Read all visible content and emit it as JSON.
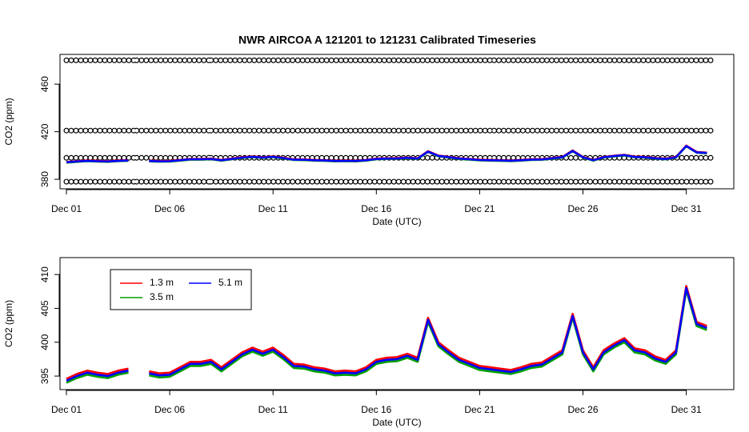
{
  "chart_data": [
    {
      "type": "line",
      "title": "NWR   AIRCOA  A   121201  to  121231   Calibrated Timeseries",
      "xlabel": "Date (UTC)",
      "ylabel": "CO2 (ppm)",
      "xlim": [
        0.69,
        33.3
      ],
      "ylim": [
        372,
        485
      ],
      "xticks": [
        {
          "value": 1,
          "label": "Dec 01"
        },
        {
          "value": 6,
          "label": "Dec 06"
        },
        {
          "value": 11,
          "label": "Dec 11"
        },
        {
          "value": 16,
          "label": "Dec 16"
        },
        {
          "value": 21,
          "label": "Dec 21"
        },
        {
          "value": 26,
          "label": "Dec 26"
        },
        {
          "value": 31,
          "label": "Dec 31"
        }
      ],
      "yticks": [
        380,
        420,
        460
      ],
      "x": [
        1,
        1.5,
        2,
        2.5,
        3,
        3.5,
        4,
        4.5,
        5,
        5.5,
        6,
        6.5,
        7,
        7.5,
        8,
        8.5,
        9,
        9.5,
        10,
        10.5,
        11,
        11.5,
        12,
        12.5,
        13,
        13.5,
        14,
        14.5,
        15,
        15.5,
        16,
        16.5,
        17,
        17.5,
        18,
        18.5,
        19,
        19.5,
        20,
        20.5,
        21,
        21.5,
        22,
        22.5,
        23,
        23.5,
        24,
        24.5,
        25,
        25.5,
        26,
        26.5,
        27,
        27.5,
        28,
        28.5,
        29,
        29.5,
        30,
        30.5,
        31,
        31.5,
        32
      ],
      "series": [
        {
          "color": "#000000",
          "marker": "circle",
          "x": [
            1.0,
            4.3,
            4.35,
            4.4,
            7.9,
            7.95,
            8.0,
            12.1,
            12.15,
            12.2,
            21.6,
            21.65,
            21.7,
            26.5,
            26.55,
            26.6,
            32.2
          ],
          "values": [
            480,
            480,
            null,
            480,
            480,
            null,
            480,
            480,
            null,
            480,
            480,
            null,
            480,
            480,
            null,
            480,
            480
          ]
        },
        {
          "color": "#000000",
          "marker": "circle",
          "x": [
            1.0,
            4.3,
            4.35,
            4.4,
            7.9,
            7.95,
            8.0,
            12.1,
            12.15,
            12.2,
            21.6,
            21.65,
            21.7,
            26.5,
            26.55,
            26.6,
            32.2
          ],
          "values": [
            421,
            421,
            null,
            421,
            421,
            null,
            421,
            421,
            null,
            421,
            421,
            null,
            421,
            421,
            null,
            421,
            421
          ]
        },
        {
          "color": "#000000",
          "marker": "circle",
          "x": [
            1.0,
            4.3,
            4.35,
            4.4,
            7.9,
            7.95,
            8.0,
            12.1,
            12.15,
            12.2,
            21.6,
            21.65,
            21.7,
            26.5,
            26.55,
            26.6,
            32.2
          ],
          "values": [
            398,
            398,
            null,
            398,
            398,
            null,
            398,
            398,
            null,
            398,
            398,
            null,
            398,
            398,
            null,
            398,
            398
          ]
        },
        {
          "color": "#000000",
          "marker": "circle",
          "x": [
            1.0,
            4.3,
            4.35,
            4.4,
            7.9,
            7.95,
            8.0,
            12.1,
            12.15,
            12.2,
            21.6,
            21.65,
            21.7,
            26.5,
            26.55,
            26.6,
            32.2
          ],
          "values": [
            378,
            378,
            null,
            378,
            378,
            null,
            378,
            378,
            null,
            378,
            378,
            null,
            378,
            378,
            null,
            378,
            378
          ]
        },
        {
          "color": "#00a000",
          "values": [
            394,
            394.7,
            395.2,
            394.9,
            394.7,
            395.2,
            395.5,
            null,
            395.1,
            394.8,
            394.9,
            395.7,
            396.5,
            396.5,
            396.8,
            395.7,
            396.8,
            397.9,
            398.6,
            398,
            398.6,
            397.5,
            396.2,
            396.1,
            395.7,
            395.5,
            395.1,
            395.2,
            395.1,
            395.7,
            396.8,
            397.1,
            397.2,
            397.7,
            397.1,
            403,
            399.4,
            398.2,
            397.1,
            396.5,
            395.9,
            395.7,
            395.5,
            395.3,
            395.7,
            396.2,
            396.4,
            397.3,
            398.2,
            403.6,
            398.2,
            395.7,
            398.2,
            399.2,
            400,
            398.5,
            398.2,
            397.3,
            396.8,
            398.2,
            407.7,
            402.4,
            401.8
          ]
        },
        {
          "color": "#ff0000",
          "values": [
            394.6,
            395.3,
            395.8,
            395.5,
            395.3,
            395.8,
            396.1,
            null,
            395.7,
            395.4,
            395.5,
            396.3,
            397.1,
            397.1,
            397.4,
            396.3,
            397.4,
            398.5,
            399.2,
            398.6,
            399.2,
            398.1,
            396.8,
            396.7,
            396.3,
            396.1,
            395.7,
            395.8,
            395.7,
            396.3,
            397.4,
            397.7,
            397.8,
            398.3,
            397.7,
            403.6,
            400,
            398.8,
            397.7,
            397.1,
            396.5,
            396.3,
            396.1,
            395.9,
            396.3,
            396.8,
            397,
            397.9,
            398.8,
            404.2,
            398.8,
            396.3,
            398.8,
            399.8,
            400.6,
            399.1,
            398.8,
            397.9,
            397.4,
            398.8,
            408.3,
            403,
            402.4
          ]
        },
        {
          "color": "#0000ff",
          "values": [
            394.3,
            395,
            395.5,
            395.2,
            395,
            395.5,
            395.8,
            null,
            395.4,
            395.1,
            395.2,
            396,
            396.8,
            396.8,
            397.1,
            396,
            397.1,
            398.2,
            398.9,
            398.3,
            398.9,
            397.8,
            396.5,
            396.4,
            396,
            395.8,
            395.4,
            395.5,
            395.4,
            396,
            397.1,
            397.4,
            397.5,
            398,
            397.4,
            403.3,
            399.7,
            398.5,
            397.4,
            396.8,
            396.2,
            396,
            395.8,
            395.6,
            396,
            396.5,
            396.7,
            397.6,
            398.5,
            403.9,
            398.5,
            396,
            398.5,
            399.5,
            400.3,
            398.8,
            398.5,
            397.6,
            397.1,
            398.5,
            408,
            402.7,
            402.1
          ]
        }
      ]
    },
    {
      "type": "line",
      "xlabel": "Date (UTC)",
      "ylabel": "CO2 (ppm)",
      "xlim": [
        0.69,
        33.3
      ],
      "ylim": [
        393,
        412.5
      ],
      "xticks": [
        {
          "value": 1,
          "label": "Dec 01"
        },
        {
          "value": 6,
          "label": "Dec 06"
        },
        {
          "value": 11,
          "label": "Dec 11"
        },
        {
          "value": 16,
          "label": "Dec 16"
        },
        {
          "value": 21,
          "label": "Dec 21"
        },
        {
          "value": 26,
          "label": "Dec 26"
        },
        {
          "value": 31,
          "label": "Dec 31"
        }
      ],
      "yticks": [
        395,
        400,
        405,
        410
      ],
      "legend": "top-left",
      "x": [
        1,
        1.5,
        2,
        2.5,
        3,
        3.5,
        4,
        4.5,
        5,
        5.5,
        6,
        6.5,
        7,
        7.5,
        8,
        8.5,
        9,
        9.5,
        10,
        10.5,
        11,
        11.5,
        12,
        12.5,
        13,
        13.5,
        14,
        14.5,
        15,
        15.5,
        16,
        16.5,
        17,
        17.5,
        18,
        18.5,
        19,
        19.5,
        20,
        20.5,
        21,
        21.5,
        22,
        22.5,
        23,
        23.5,
        24,
        24.5,
        25,
        25.5,
        26,
        26.5,
        27,
        27.5,
        28,
        28.5,
        29,
        29.5,
        30,
        30.5,
        31,
        31.5,
        32
      ],
      "series": [
        {
          "name": "1.3 m",
          "color": "#ff0000",
          "values": [
            394.6,
            395.3,
            395.8,
            395.5,
            395.3,
            395.8,
            396.1,
            null,
            395.7,
            395.4,
            395.5,
            396.3,
            397.1,
            397.1,
            397.4,
            396.3,
            397.4,
            398.5,
            399.2,
            398.6,
            399.2,
            398.1,
            396.8,
            396.7,
            396.3,
            396.1,
            395.7,
            395.8,
            395.7,
            396.3,
            397.4,
            397.7,
            397.8,
            398.3,
            397.7,
            403.6,
            400,
            398.8,
            397.7,
            397.1,
            396.5,
            396.3,
            396.1,
            395.9,
            396.3,
            396.8,
            397,
            397.9,
            398.8,
            404.2,
            398.8,
            396.3,
            398.8,
            399.8,
            400.6,
            399.1,
            398.8,
            397.9,
            397.4,
            398.8,
            408.3,
            403,
            402.4
          ]
        },
        {
          "name": "3.5 m",
          "color": "#00a000",
          "values": [
            394,
            394.7,
            395.2,
            394.9,
            394.7,
            395.2,
            395.5,
            null,
            395.1,
            394.8,
            394.9,
            395.7,
            396.5,
            396.5,
            396.8,
            395.7,
            396.8,
            397.9,
            398.6,
            398,
            398.6,
            397.5,
            396.2,
            396.1,
            395.7,
            395.5,
            395.1,
            395.2,
            395.1,
            395.7,
            396.8,
            397.1,
            397.2,
            397.7,
            397.1,
            403,
            399.4,
            398.2,
            397.1,
            396.5,
            395.9,
            395.7,
            395.5,
            395.3,
            395.7,
            396.2,
            396.4,
            397.3,
            398.2,
            403.6,
            398.2,
            395.7,
            398.2,
            399.2,
            400,
            398.5,
            398.2,
            397.3,
            396.8,
            398.2,
            407.7,
            402.4,
            401.8
          ]
        },
        {
          "name": "5.1 m",
          "color": "#0000ff",
          "values": [
            394.3,
            395,
            395.5,
            395.2,
            395,
            395.5,
            395.8,
            null,
            395.4,
            395.1,
            395.2,
            396,
            396.8,
            396.8,
            397.1,
            396,
            397.1,
            398.2,
            398.9,
            398.3,
            398.9,
            397.8,
            396.5,
            396.4,
            396,
            395.8,
            395.4,
            395.5,
            395.4,
            396,
            397.1,
            397.4,
            397.5,
            398,
            397.4,
            403.3,
            399.7,
            398.5,
            397.4,
            396.8,
            396.2,
            396,
            395.8,
            395.6,
            396,
            396.5,
            396.7,
            397.6,
            398.5,
            403.9,
            398.5,
            396,
            398.5,
            399.5,
            400.3,
            398.8,
            398.5,
            397.6,
            397.1,
            398.5,
            408,
            402.7,
            402.1
          ]
        }
      ]
    }
  ]
}
